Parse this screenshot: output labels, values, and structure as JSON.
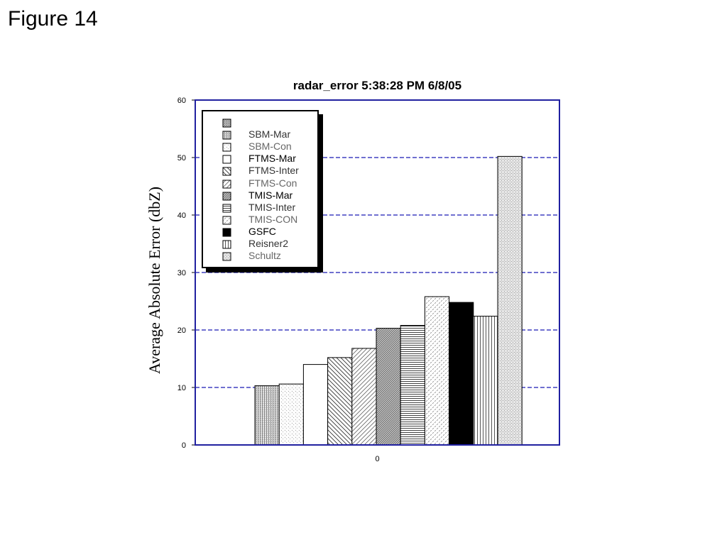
{
  "page": {
    "heading": "Figure 14"
  },
  "chart_data": {
    "type": "bar",
    "title": "radar_error 5:38:28 PM 6/8/05",
    "xlabel": "",
    "ylabel": "Average Absolute Error (dbZ)",
    "categories": [
      "0"
    ],
    "ylim": [
      0,
      60
    ],
    "yticks": [
      "0",
      "10",
      "20",
      "30",
      "40",
      "50",
      "60"
    ],
    "grid": true,
    "legend_position": "top-left",
    "series": [
      {
        "name": "",
        "values": [
          null
        ],
        "pattern": "dark-dots",
        "text_color": "#000000"
      },
      {
        "name": "SBM-Mar",
        "values": [
          10.3
        ],
        "pattern": "fine-vertical",
        "text_color": "#333333"
      },
      {
        "name": "SBM-Con",
        "values": [
          10.6
        ],
        "pattern": "light-dots",
        "text_color": "#666666"
      },
      {
        "name": "FTMS-Mar",
        "values": [
          14.0
        ],
        "pattern": "white",
        "text_color": "#000000"
      },
      {
        "name": "FTMS-Inter",
        "values": [
          15.2
        ],
        "pattern": "back-diagonal",
        "text_color": "#333333"
      },
      {
        "name": "FTMS-Con",
        "values": [
          16.8
        ],
        "pattern": "forward-diagonal",
        "text_color": "#666666"
      },
      {
        "name": "TMIS-Mar",
        "values": [
          20.3
        ],
        "pattern": "dense-diagonal",
        "text_color": "#000000"
      },
      {
        "name": "TMIS-Inter",
        "values": [
          20.8
        ],
        "pattern": "horizontal",
        "text_color": "#333333"
      },
      {
        "name": "TMIS-CON",
        "values": [
          25.8
        ],
        "pattern": "dashes",
        "text_color": "#666666"
      },
      {
        "name": "GSFC",
        "values": [
          24.8
        ],
        "pattern": "solid-black",
        "text_color": "#000000"
      },
      {
        "name": "Reisner2",
        "values": [
          22.4
        ],
        "pattern": "vertical",
        "text_color": "#333333"
      },
      {
        "name": "Schultz",
        "values": [
          50.2
        ],
        "pattern": "stipple",
        "text_color": "#666666"
      }
    ],
    "colors": {
      "grid": "#4040c0",
      "frame": "#2020a0",
      "bar_edge": "#000000"
    }
  }
}
